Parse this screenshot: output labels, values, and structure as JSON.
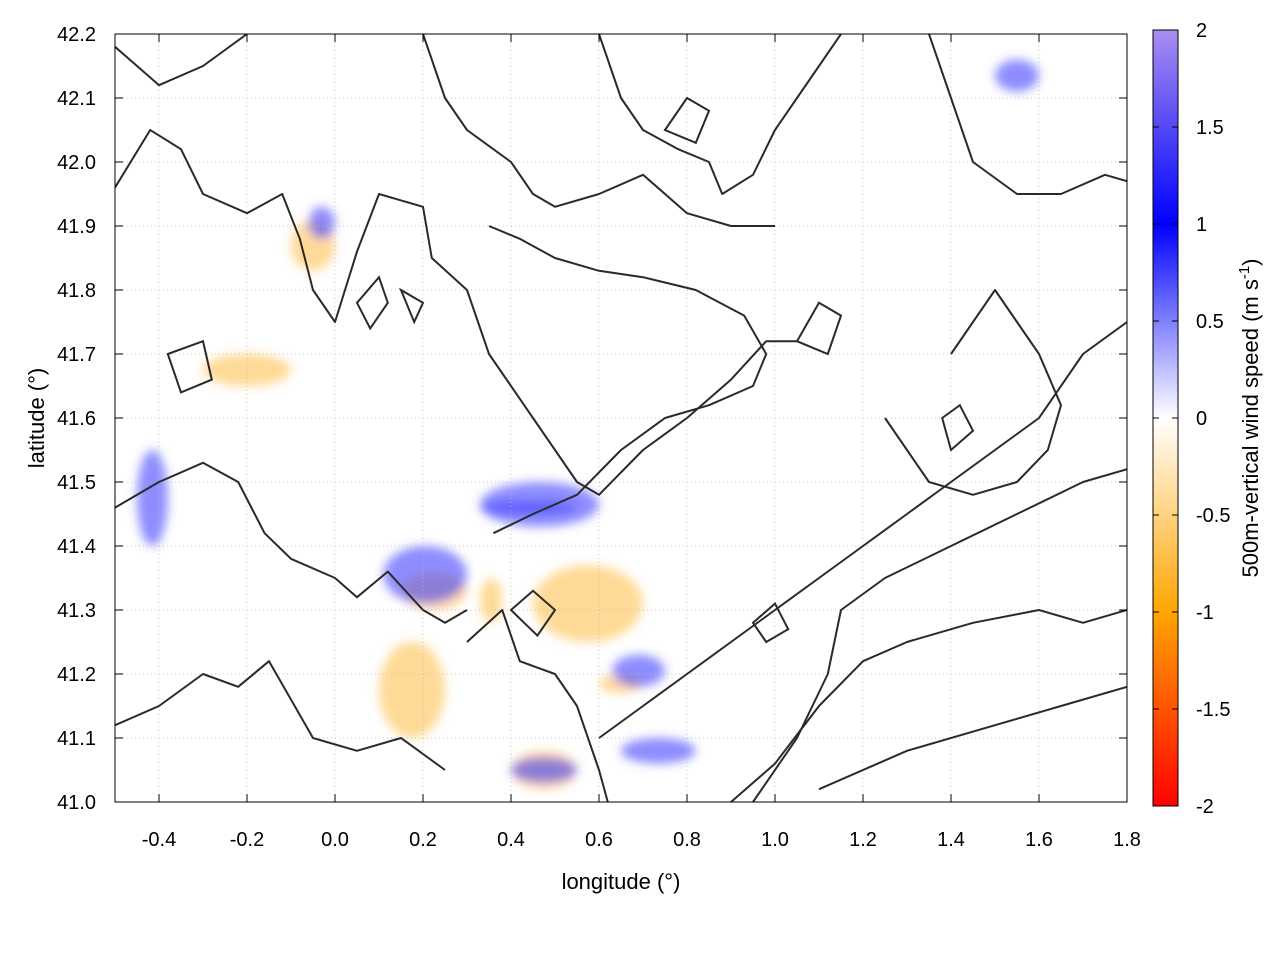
{
  "chart_data": {
    "type": "heatmap",
    "xlabel": "longitude (°)",
    "ylabel": "latitude (°)",
    "colorbar_label": "500m-vertical wind speed (m s",
    "colorbar_label_sup": "-1",
    "colorbar_label_end": ")",
    "xlim": [
      -0.5,
      1.8
    ],
    "ylim": [
      41.0,
      42.2
    ],
    "clim": [
      -2,
      2
    ],
    "x_ticks": [
      -0.4,
      -0.2,
      0.0,
      0.2,
      0.4,
      0.6,
      0.8,
      1.0,
      1.2,
      1.4,
      1.6,
      1.8
    ],
    "x_tick_labels": [
      "-0.4",
      "-0.2",
      "0.0",
      "0.2",
      "0.4",
      "0.6",
      "0.8",
      "1.0",
      "1.2",
      "1.4",
      "1.6",
      "1.8"
    ],
    "y_ticks": [
      41.0,
      41.1,
      41.2,
      41.3,
      41.4,
      41.5,
      41.6,
      41.7,
      41.8,
      41.9,
      42.0,
      42.1,
      42.2
    ],
    "y_tick_labels": [
      "41.0",
      "41.1",
      "41.2",
      "41.3",
      "41.4",
      "41.5",
      "41.6",
      "41.7",
      "41.8",
      "41.9",
      "42.0",
      "42.1",
      "42.2"
    ],
    "colorbar_ticks": [
      -2,
      -1.5,
      -1,
      -0.5,
      0,
      0.5,
      1,
      1.5,
      2
    ],
    "colorbar_tick_labels": [
      "-2",
      "-1.5",
      "-1",
      "-0.5",
      "0",
      "0.5",
      "1",
      "1.5",
      "2"
    ],
    "colormap": [
      {
        "v": -2,
        "color": "#ff0000"
      },
      {
        "v": -1,
        "color": "#ffa500"
      },
      {
        "v": 0,
        "color": "#ffffff"
      },
      {
        "v": 1,
        "color": "#0000ff"
      },
      {
        "v": 2,
        "color": "#a98ff0"
      }
    ],
    "grid": true,
    "features": {
      "positive_bands": [
        {
          "lon": [
            0.33,
            0.6
          ],
          "lat": [
            41.43,
            41.5
          ]
        },
        {
          "lon": [
            0.33,
            0.55
          ],
          "lat": [
            41.45,
            41.47
          ]
        },
        {
          "lon": [
            0.11,
            0.3
          ],
          "lat": [
            41.31,
            41.4
          ]
        },
        {
          "lon": [
            0.63,
            0.75
          ],
          "lat": [
            41.18,
            41.23
          ]
        },
        {
          "lon": [
            0.4,
            0.55
          ],
          "lat": [
            41.03,
            41.07
          ]
        },
        {
          "lon": [
            0.65,
            0.82
          ],
          "lat": [
            41.06,
            41.1
          ]
        },
        {
          "lon": [
            -0.06,
            0.0
          ],
          "lat": [
            41.88,
            41.93
          ]
        },
        {
          "lon": [
            -0.45,
            -0.38
          ],
          "lat": [
            41.4,
            41.55
          ]
        },
        {
          "lon": [
            1.5,
            1.6
          ],
          "lat": [
            42.11,
            42.16
          ]
        }
      ],
      "negative_bands": [
        {
          "lon": [
            0.33,
            0.38
          ],
          "lat": [
            41.28,
            41.35
          ]
        },
        {
          "lon": [
            0.4,
            0.55
          ],
          "lat": [
            41.02,
            41.08
          ]
        },
        {
          "lon": [
            0.6,
            0.7
          ],
          "lat": [
            41.17,
            41.2
          ]
        },
        {
          "lon": [
            0.15,
            0.3
          ],
          "lat": [
            41.3,
            41.36
          ]
        },
        {
          "lon": [
            -0.1,
            0.0
          ],
          "lat": [
            41.83,
            41.91
          ]
        },
        {
          "lon": [
            0.45,
            0.7
          ],
          "lat": [
            41.25,
            41.37
          ]
        },
        {
          "lon": [
            -0.3,
            -0.1
          ],
          "lat": [
            41.65,
            41.7
          ]
        },
        {
          "lon": [
            0.1,
            0.25
          ],
          "lat": [
            41.1,
            41.25
          ]
        }
      ]
    },
    "contours": [
      [
        [
          -0.5,
          41.46
        ],
        [
          -0.4,
          41.5
        ],
        [
          -0.3,
          41.53
        ],
        [
          -0.22,
          41.5
        ],
        [
          -0.16,
          41.42
        ],
        [
          -0.1,
          41.38
        ],
        [
          0.0,
          41.35
        ],
        [
          0.05,
          41.32
        ],
        [
          0.12,
          41.36
        ],
        [
          0.2,
          41.3
        ],
        [
          0.25,
          41.28
        ],
        [
          0.3,
          41.3
        ]
      ],
      [
        [
          -0.5,
          41.12
        ],
        [
          -0.4,
          41.15
        ],
        [
          -0.3,
          41.2
        ],
        [
          -0.22,
          41.18
        ],
        [
          -0.15,
          41.22
        ],
        [
          -0.05,
          41.1
        ],
        [
          0.05,
          41.08
        ],
        [
          0.15,
          41.1
        ],
        [
          0.25,
          41.05
        ]
      ],
      [
        [
          -0.5,
          41.96
        ],
        [
          -0.42,
          42.05
        ],
        [
          -0.35,
          42.02
        ],
        [
          -0.3,
          41.95
        ],
        [
          -0.2,
          41.92
        ],
        [
          -0.12,
          41.95
        ],
        [
          -0.08,
          41.88
        ],
        [
          -0.05,
          41.8
        ],
        [
          0.0,
          41.75
        ],
        [
          0.05,
          41.86
        ],
        [
          0.1,
          41.95
        ],
        [
          0.2,
          41.93
        ],
        [
          0.22,
          41.85
        ],
        [
          0.3,
          41.8
        ],
        [
          0.35,
          41.7
        ],
        [
          0.4,
          41.65
        ],
        [
          0.45,
          41.6
        ],
        [
          0.5,
          41.55
        ],
        [
          0.55,
          41.5
        ],
        [
          0.6,
          41.48
        ],
        [
          0.7,
          41.55
        ],
        [
          0.8,
          41.6
        ],
        [
          0.9,
          41.66
        ],
        [
          0.98,
          41.72
        ],
        [
          1.05,
          41.72
        ]
      ],
      [
        [
          0.36,
          41.42
        ],
        [
          0.45,
          41.45
        ],
        [
          0.55,
          41.48
        ],
        [
          0.65,
          41.55
        ],
        [
          0.75,
          41.6
        ],
        [
          0.85,
          41.62
        ],
        [
          0.95,
          41.65
        ],
        [
          0.98,
          41.7
        ],
        [
          0.93,
          41.76
        ],
        [
          0.82,
          41.8
        ],
        [
          0.7,
          41.82
        ],
        [
          0.6,
          41.83
        ],
        [
          0.5,
          41.85
        ],
        [
          0.42,
          41.88
        ],
        [
          0.35,
          41.9
        ]
      ],
      [
        [
          0.6,
          41.1
        ],
        [
          0.7,
          41.15
        ],
        [
          0.8,
          41.2
        ],
        [
          0.9,
          41.25
        ],
        [
          1.0,
          41.3
        ],
        [
          1.1,
          41.35
        ],
        [
          1.2,
          41.4
        ],
        [
          1.3,
          41.45
        ],
        [
          1.4,
          41.5
        ],
        [
          1.5,
          41.55
        ],
        [
          1.6,
          41.6
        ],
        [
          1.7,
          41.7
        ],
        [
          1.8,
          41.75
        ]
      ],
      [
        [
          0.95,
          41.0
        ],
        [
          1.05,
          41.1
        ],
        [
          1.12,
          41.2
        ],
        [
          1.15,
          41.3
        ],
        [
          1.25,
          41.35
        ],
        [
          1.4,
          41.4
        ],
        [
          1.55,
          41.45
        ],
        [
          1.7,
          41.5
        ],
        [
          1.8,
          41.52
        ]
      ],
      [
        [
          0.9,
          41.0
        ],
        [
          1.0,
          41.06
        ],
        [
          1.1,
          41.15
        ],
        [
          1.2,
          41.22
        ],
        [
          1.3,
          41.25
        ],
        [
          1.45,
          41.28
        ],
        [
          1.6,
          41.3
        ],
        [
          1.7,
          41.28
        ],
        [
          1.8,
          41.3
        ]
      ],
      [
        [
          1.1,
          41.02
        ],
        [
          1.3,
          41.08
        ],
        [
          1.5,
          41.12
        ],
        [
          1.65,
          41.15
        ],
        [
          1.8,
          41.18
        ]
      ],
      [
        [
          0.2,
          42.2
        ],
        [
          0.25,
          42.1
        ],
        [
          0.3,
          42.05
        ],
        [
          0.4,
          42.0
        ],
        [
          0.45,
          41.95
        ],
        [
          0.5,
          41.93
        ],
        [
          0.6,
          41.95
        ],
        [
          0.7,
          41.98
        ],
        [
          0.75,
          41.95
        ],
        [
          0.8,
          41.92
        ],
        [
          0.9,
          41.9
        ],
        [
          1.0,
          41.9
        ]
      ],
      [
        [
          0.6,
          42.2
        ],
        [
          0.65,
          42.1
        ],
        [
          0.7,
          42.05
        ],
        [
          0.78,
          42.02
        ],
        [
          0.85,
          42.0
        ],
        [
          0.88,
          41.95
        ],
        [
          0.95,
          41.98
        ],
        [
          1.0,
          42.05
        ],
        [
          1.05,
          42.1
        ],
        [
          1.1,
          42.15
        ],
        [
          1.15,
          42.2
        ]
      ],
      [
        [
          1.35,
          42.2
        ],
        [
          1.4,
          42.1
        ],
        [
          1.45,
          42.0
        ],
        [
          1.55,
          41.95
        ],
        [
          1.65,
          41.95
        ],
        [
          1.75,
          41.98
        ],
        [
          1.8,
          41.97
        ]
      ],
      [
        [
          1.25,
          41.6
        ],
        [
          1.3,
          41.55
        ],
        [
          1.35,
          41.5
        ],
        [
          1.45,
          41.48
        ],
        [
          1.55,
          41.5
        ],
        [
          1.62,
          41.55
        ],
        [
          1.65,
          41.62
        ],
        [
          1.6,
          41.7
        ],
        [
          1.55,
          41.75
        ],
        [
          1.5,
          41.8
        ],
        [
          1.45,
          41.75
        ],
        [
          1.4,
          41.7
        ]
      ],
      [
        [
          -0.5,
          42.18
        ],
        [
          -0.4,
          42.12
        ],
        [
          -0.3,
          42.15
        ],
        [
          -0.2,
          42.2
        ]
      ],
      [
        [
          0.3,
          41.25
        ],
        [
          0.38,
          41.3
        ],
        [
          0.42,
          41.22
        ],
        [
          0.5,
          41.2
        ],
        [
          0.55,
          41.15
        ],
        [
          0.6,
          41.05
        ],
        [
          0.62,
          41.0
        ]
      ]
    ],
    "closed_contours": [
      [
        [
          0.05,
          41.78
        ],
        [
          0.1,
          41.82
        ],
        [
          0.12,
          41.78
        ],
        [
          0.08,
          41.74
        ],
        [
          0.05,
          41.78
        ]
      ],
      [
        [
          1.05,
          41.72
        ],
        [
          1.1,
          41.78
        ],
        [
          1.15,
          41.76
        ],
        [
          1.12,
          41.7
        ],
        [
          1.05,
          41.72
        ]
      ],
      [
        [
          1.38,
          41.6
        ],
        [
          1.42,
          41.62
        ],
        [
          1.45,
          41.58
        ],
        [
          1.4,
          41.55
        ],
        [
          1.38,
          41.6
        ]
      ],
      [
        [
          -0.38,
          41.7
        ],
        [
          -0.3,
          41.72
        ],
        [
          -0.28,
          41.66
        ],
        [
          -0.35,
          41.64
        ],
        [
          -0.38,
          41.7
        ]
      ],
      [
        [
          0.15,
          41.8
        ],
        [
          0.2,
          41.78
        ],
        [
          0.18,
          41.75
        ],
        [
          0.15,
          41.8
        ]
      ],
      [
        [
          0.75,
          42.05
        ],
        [
          0.8,
          42.1
        ],
        [
          0.85,
          42.08
        ],
        [
          0.82,
          42.03
        ],
        [
          0.75,
          42.05
        ]
      ],
      [
        [
          0.4,
          41.3
        ],
        [
          0.45,
          41.33
        ],
        [
          0.5,
          41.3
        ],
        [
          0.46,
          41.26
        ],
        [
          0.4,
          41.3
        ]
      ],
      [
        [
          0.95,
          41.28
        ],
        [
          1.0,
          41.31
        ],
        [
          1.03,
          41.27
        ],
        [
          0.98,
          41.25
        ],
        [
          0.95,
          41.28
        ]
      ]
    ]
  }
}
